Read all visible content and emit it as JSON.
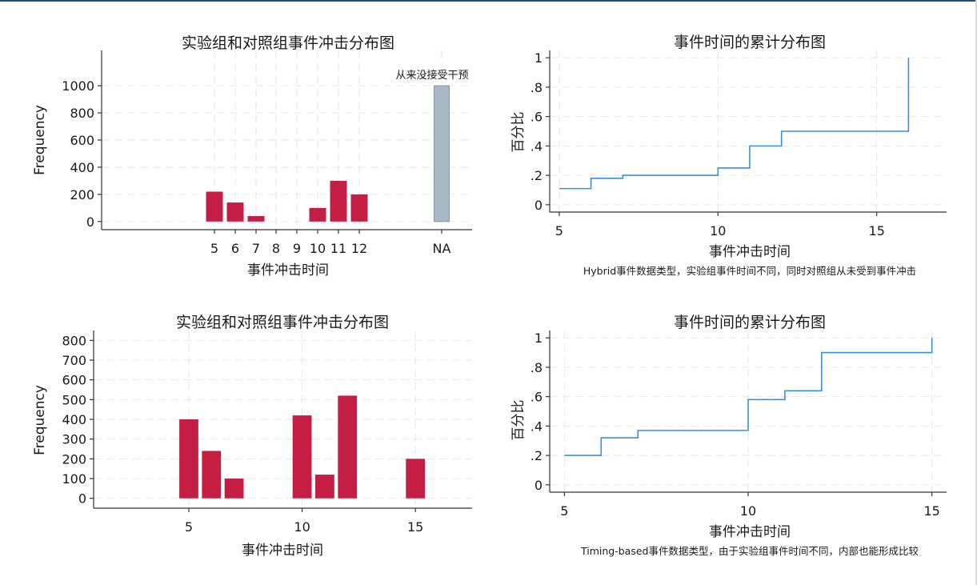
{
  "colors": {
    "bar": "#c41e45",
    "na_bar": "#a9b8c6",
    "na_bar_edge": "#8796a6",
    "step_line": "#3a8fd9"
  },
  "chart_data": [
    {
      "type": "bar",
      "title": "实验组和对照组事件冲击分布图",
      "xlabel": "事件冲击时间",
      "ylabel": "Frequency",
      "categories": [
        "5",
        "6",
        "7",
        "8",
        "9",
        "10",
        "11",
        "12",
        "NA"
      ],
      "values": [
        220,
        140,
        40,
        0,
        0,
        100,
        300,
        200,
        1000
      ],
      "ylim": [
        -60,
        1260
      ],
      "yticks": [
        0,
        200,
        400,
        600,
        800,
        1000
      ],
      "yticklabels": [
        "0",
        "200",
        "400",
        "600",
        "800",
        "1000"
      ],
      "annotation": {
        "category": "NA",
        "text": "从来没接受干预"
      },
      "grid": true
    },
    {
      "type": "line",
      "step": true,
      "title": "事件时间的累计分布图",
      "xlabel": "事件冲击时间",
      "ylabel": "百分比",
      "x": [
        5,
        6,
        7,
        10,
        11,
        12,
        16,
        16
      ],
      "y": [
        0.11,
        0.18,
        0.2,
        0.25,
        0.4,
        0.5,
        0.5,
        1.0
      ],
      "xlim": [
        4.7,
        17.2
      ],
      "ylim": [
        -0.05,
        1.05
      ],
      "xticks": [
        5,
        10,
        15
      ],
      "xticklabels": [
        "5",
        "10",
        "15"
      ],
      "yticks": [
        0,
        0.2,
        0.4,
        0.6,
        0.8,
        1
      ],
      "yticklabels": [
        "0",
        ".2",
        ".4",
        ".6",
        ".8",
        "1"
      ],
      "note": "Hybrid事件数据类型，实验组事件时间不同，同时对照组从未受到事件冲击",
      "grid": true
    },
    {
      "type": "bar",
      "title": "实验组和对照组事件冲击分布图",
      "xlabel": "事件冲击时间",
      "ylabel": "Frequency",
      "x": [
        5,
        6,
        7,
        10,
        11,
        12,
        15
      ],
      "values": [
        400,
        240,
        100,
        420,
        120,
        520,
        200
      ],
      "xlim": [
        0.8,
        17.5
      ],
      "ylim": [
        -50,
        850
      ],
      "xticks": [
        5,
        10,
        15
      ],
      "xticklabels": [
        "5",
        "10",
        "15"
      ],
      "yticks": [
        0,
        100,
        200,
        300,
        400,
        500,
        600,
        700,
        800
      ],
      "yticklabels": [
        "0",
        "100",
        "200",
        "300",
        "400",
        "500",
        "600",
        "700",
        "800"
      ],
      "grid": true
    },
    {
      "type": "line",
      "step": true,
      "title": "事件时间的累计分布图",
      "xlabel": "事件冲击时间",
      "ylabel": "百分比",
      "x": [
        5,
        6,
        7,
        10,
        11,
        12,
        15,
        15
      ],
      "y": [
        0.2,
        0.32,
        0.37,
        0.58,
        0.64,
        0.9,
        0.9,
        1.0
      ],
      "xlim": [
        4.6,
        15.4
      ],
      "ylim": [
        -0.05,
        1.05
      ],
      "xticks": [
        5,
        10,
        15
      ],
      "xticklabels": [
        "5",
        "10",
        "15"
      ],
      "yticks": [
        0,
        0.2,
        0.4,
        0.6,
        0.8,
        1
      ],
      "yticklabels": [
        "0",
        ".2",
        ".4",
        ".6",
        ".8",
        "1"
      ],
      "note": "Timing-based事件数据类型，由于实验组事件时间不同，内部也能形成比较",
      "grid": true
    }
  ]
}
